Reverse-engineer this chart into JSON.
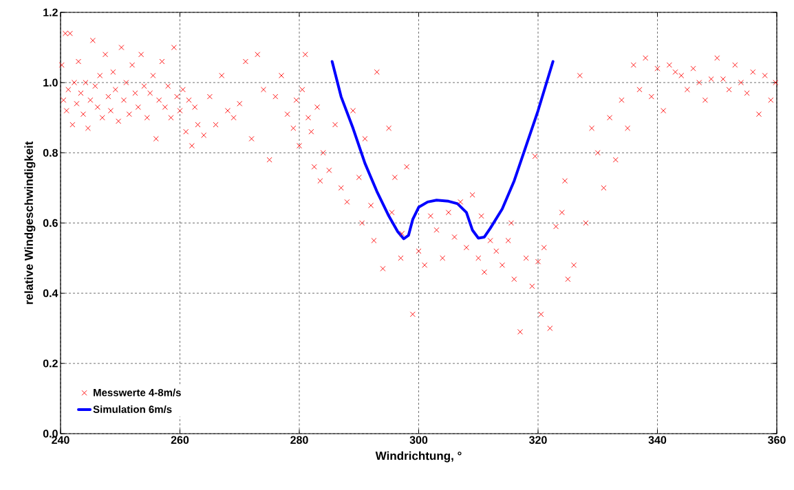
{
  "chart_data": {
    "type": "scatter",
    "xlabel": "Windrichtung, °",
    "ylabel": "relative Windgeschwindigkeit",
    "xlim": [
      240,
      360
    ],
    "ylim": [
      0,
      1.2
    ],
    "xticks": [
      240,
      260,
      280,
      300,
      320,
      340,
      360
    ],
    "yticks": [
      {
        "value": 0,
        "label": "0.0"
      },
      {
        "value": 0.2,
        "label": "0.2"
      },
      {
        "value": 0.4,
        "label": "0.4"
      },
      {
        "value": 0.6,
        "label": "0.6"
      },
      {
        "value": 0.8,
        "label": "0.8"
      },
      {
        "value": 1.0,
        "label": "1.0"
      },
      {
        "value": 1.2,
        "label": "1.2"
      }
    ],
    "grid": true,
    "legend": "bottom left",
    "series": [
      {
        "name": "Messwerte 4-8m/s",
        "color": "#ff0000",
        "marker": "cross",
        "x": [
          240.2,
          240.5,
          240.8,
          241,
          241.3,
          241.6,
          242,
          242.3,
          242.7,
          243,
          243.4,
          243.8,
          244.2,
          244.6,
          245,
          245.4,
          245.8,
          246.2,
          246.6,
          247,
          247.5,
          248,
          248.4,
          248.8,
          249.2,
          249.7,
          250.2,
          250.6,
          251,
          251.5,
          252,
          252.5,
          253,
          253.5,
          254,
          254.5,
          255,
          255.5,
          256,
          256.5,
          257,
          257.5,
          258,
          258.5,
          259,
          259.5,
          260,
          260.5,
          261,
          261.5,
          262,
          262.5,
          263,
          264,
          265,
          266,
          267,
          268,
          269,
          270,
          271,
          272,
          273,
          274,
          275,
          276,
          277,
          278,
          279,
          279.5,
          280,
          280.5,
          281,
          281.5,
          282,
          282.5,
          283,
          283.5,
          284,
          285,
          286,
          287,
          288,
          289,
          290,
          290.5,
          291,
          292,
          292.5,
          293,
          294,
          295,
          295.5,
          296,
          297,
          297.2,
          298,
          299,
          300,
          301,
          302,
          303,
          304,
          305,
          306,
          307,
          308,
          309,
          310,
          310.5,
          311,
          312,
          313,
          314,
          315,
          315.5,
          316,
          317,
          318,
          319,
          319.5,
          320,
          320.5,
          321,
          322,
          323,
          324,
          324.5,
          325,
          326,
          327,
          328,
          329,
          330,
          331,
          332,
          333,
          334,
          335,
          336,
          337,
          338,
          339,
          340,
          341,
          342,
          343,
          344,
          345,
          346,
          347,
          348,
          349,
          350,
          351,
          352,
          353,
          354,
          355,
          356,
          357,
          358,
          359,
          359.8
        ],
        "values": [
          1.05,
          0.95,
          1.14,
          0.92,
          0.98,
          1.14,
          0.88,
          1.0,
          0.94,
          1.06,
          0.97,
          0.91,
          1.0,
          0.87,
          0.95,
          1.12,
          0.99,
          0.93,
          1.02,
          0.9,
          1.08,
          0.96,
          0.92,
          1.03,
          0.98,
          0.89,
          1.1,
          0.95,
          1.0,
          0.91,
          1.05,
          0.97,
          0.93,
          1.08,
          0.99,
          0.9,
          0.97,
          1.02,
          0.84,
          0.95,
          1.06,
          0.93,
          0.99,
          0.9,
          1.1,
          0.96,
          0.92,
          0.98,
          0.86,
          0.95,
          0.82,
          0.93,
          0.88,
          0.85,
          0.96,
          0.88,
          1.02,
          0.92,
          0.9,
          0.94,
          1.06,
          0.84,
          1.08,
          0.98,
          0.78,
          0.96,
          1.02,
          0.91,
          0.87,
          0.95,
          0.82,
          0.98,
          1.08,
          0.9,
          0.86,
          0.76,
          0.93,
          0.72,
          0.8,
          0.75,
          0.88,
          0.7,
          0.66,
          0.92,
          0.73,
          0.6,
          0.84,
          0.65,
          0.55,
          1.03,
          0.47,
          0.87,
          0.63,
          0.73,
          0.5,
          0.57,
          0.76,
          0.34,
          0.52,
          0.48,
          0.62,
          0.58,
          0.5,
          0.63,
          0.56,
          0.66,
          0.53,
          0.68,
          0.5,
          0.62,
          0.46,
          0.55,
          0.52,
          0.48,
          0.55,
          0.6,
          0.44,
          0.29,
          0.5,
          0.42,
          0.79,
          0.49,
          0.34,
          0.53,
          0.3,
          0.59,
          0.63,
          0.72,
          0.44,
          0.48,
          1.02,
          0.6,
          0.87,
          0.8,
          0.7,
          0.9,
          0.78,
          0.95,
          0.87,
          1.05,
          0.98,
          1.07,
          0.96,
          1.04,
          0.92,
          1.05,
          1.03,
          1.02,
          0.98,
          1.04,
          1.0,
          0.95,
          1.01,
          1.07,
          1.01,
          0.98,
          1.05,
          1.0,
          0.97,
          1.03,
          0.91,
          1.02,
          0.95,
          1.0
        ]
      },
      {
        "name": "Simulation 6m/s",
        "type": "line",
        "color": "#0000ff",
        "marker": "none",
        "line_style": "solid",
        "x": [
          285.5,
          287,
          289,
          291,
          293,
          295,
          296.5,
          297.5,
          298.3,
          299,
          300,
          301.5,
          303,
          305,
          306.5,
          308,
          309,
          310,
          311,
          312,
          314,
          316,
          318,
          320,
          322.5
        ],
        "values": [
          1.06,
          0.96,
          0.87,
          0.77,
          0.69,
          0.62,
          0.575,
          0.555,
          0.565,
          0.61,
          0.645,
          0.66,
          0.665,
          0.662,
          0.655,
          0.63,
          0.58,
          0.557,
          0.56,
          0.585,
          0.64,
          0.72,
          0.82,
          0.92,
          1.06
        ]
      }
    ]
  }
}
